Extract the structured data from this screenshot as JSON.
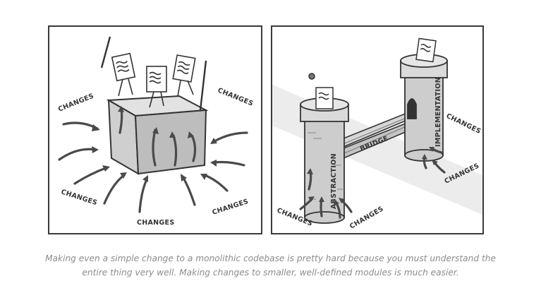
{
  "left_panel": {
    "labels": [
      "CHANGES",
      "CHANGES",
      "CHANGES",
      "CHANGES",
      "CHANGES"
    ]
  },
  "right_panel": {
    "tower_left_label": "ABSTRACTION",
    "tower_right_label": "IMPLEMENTATION",
    "bridge_label": "BRIDGE",
    "labels": [
      "CHANGES",
      "CHANGES",
      "CHANGES",
      "CHANGES"
    ]
  },
  "caption": {
    "line1": "Making even a simple change to a monolithic codebase is pretty hard because you must understand the",
    "line2": "entire thing very well. Making changes to smaller, well-defined modules is much easier."
  }
}
